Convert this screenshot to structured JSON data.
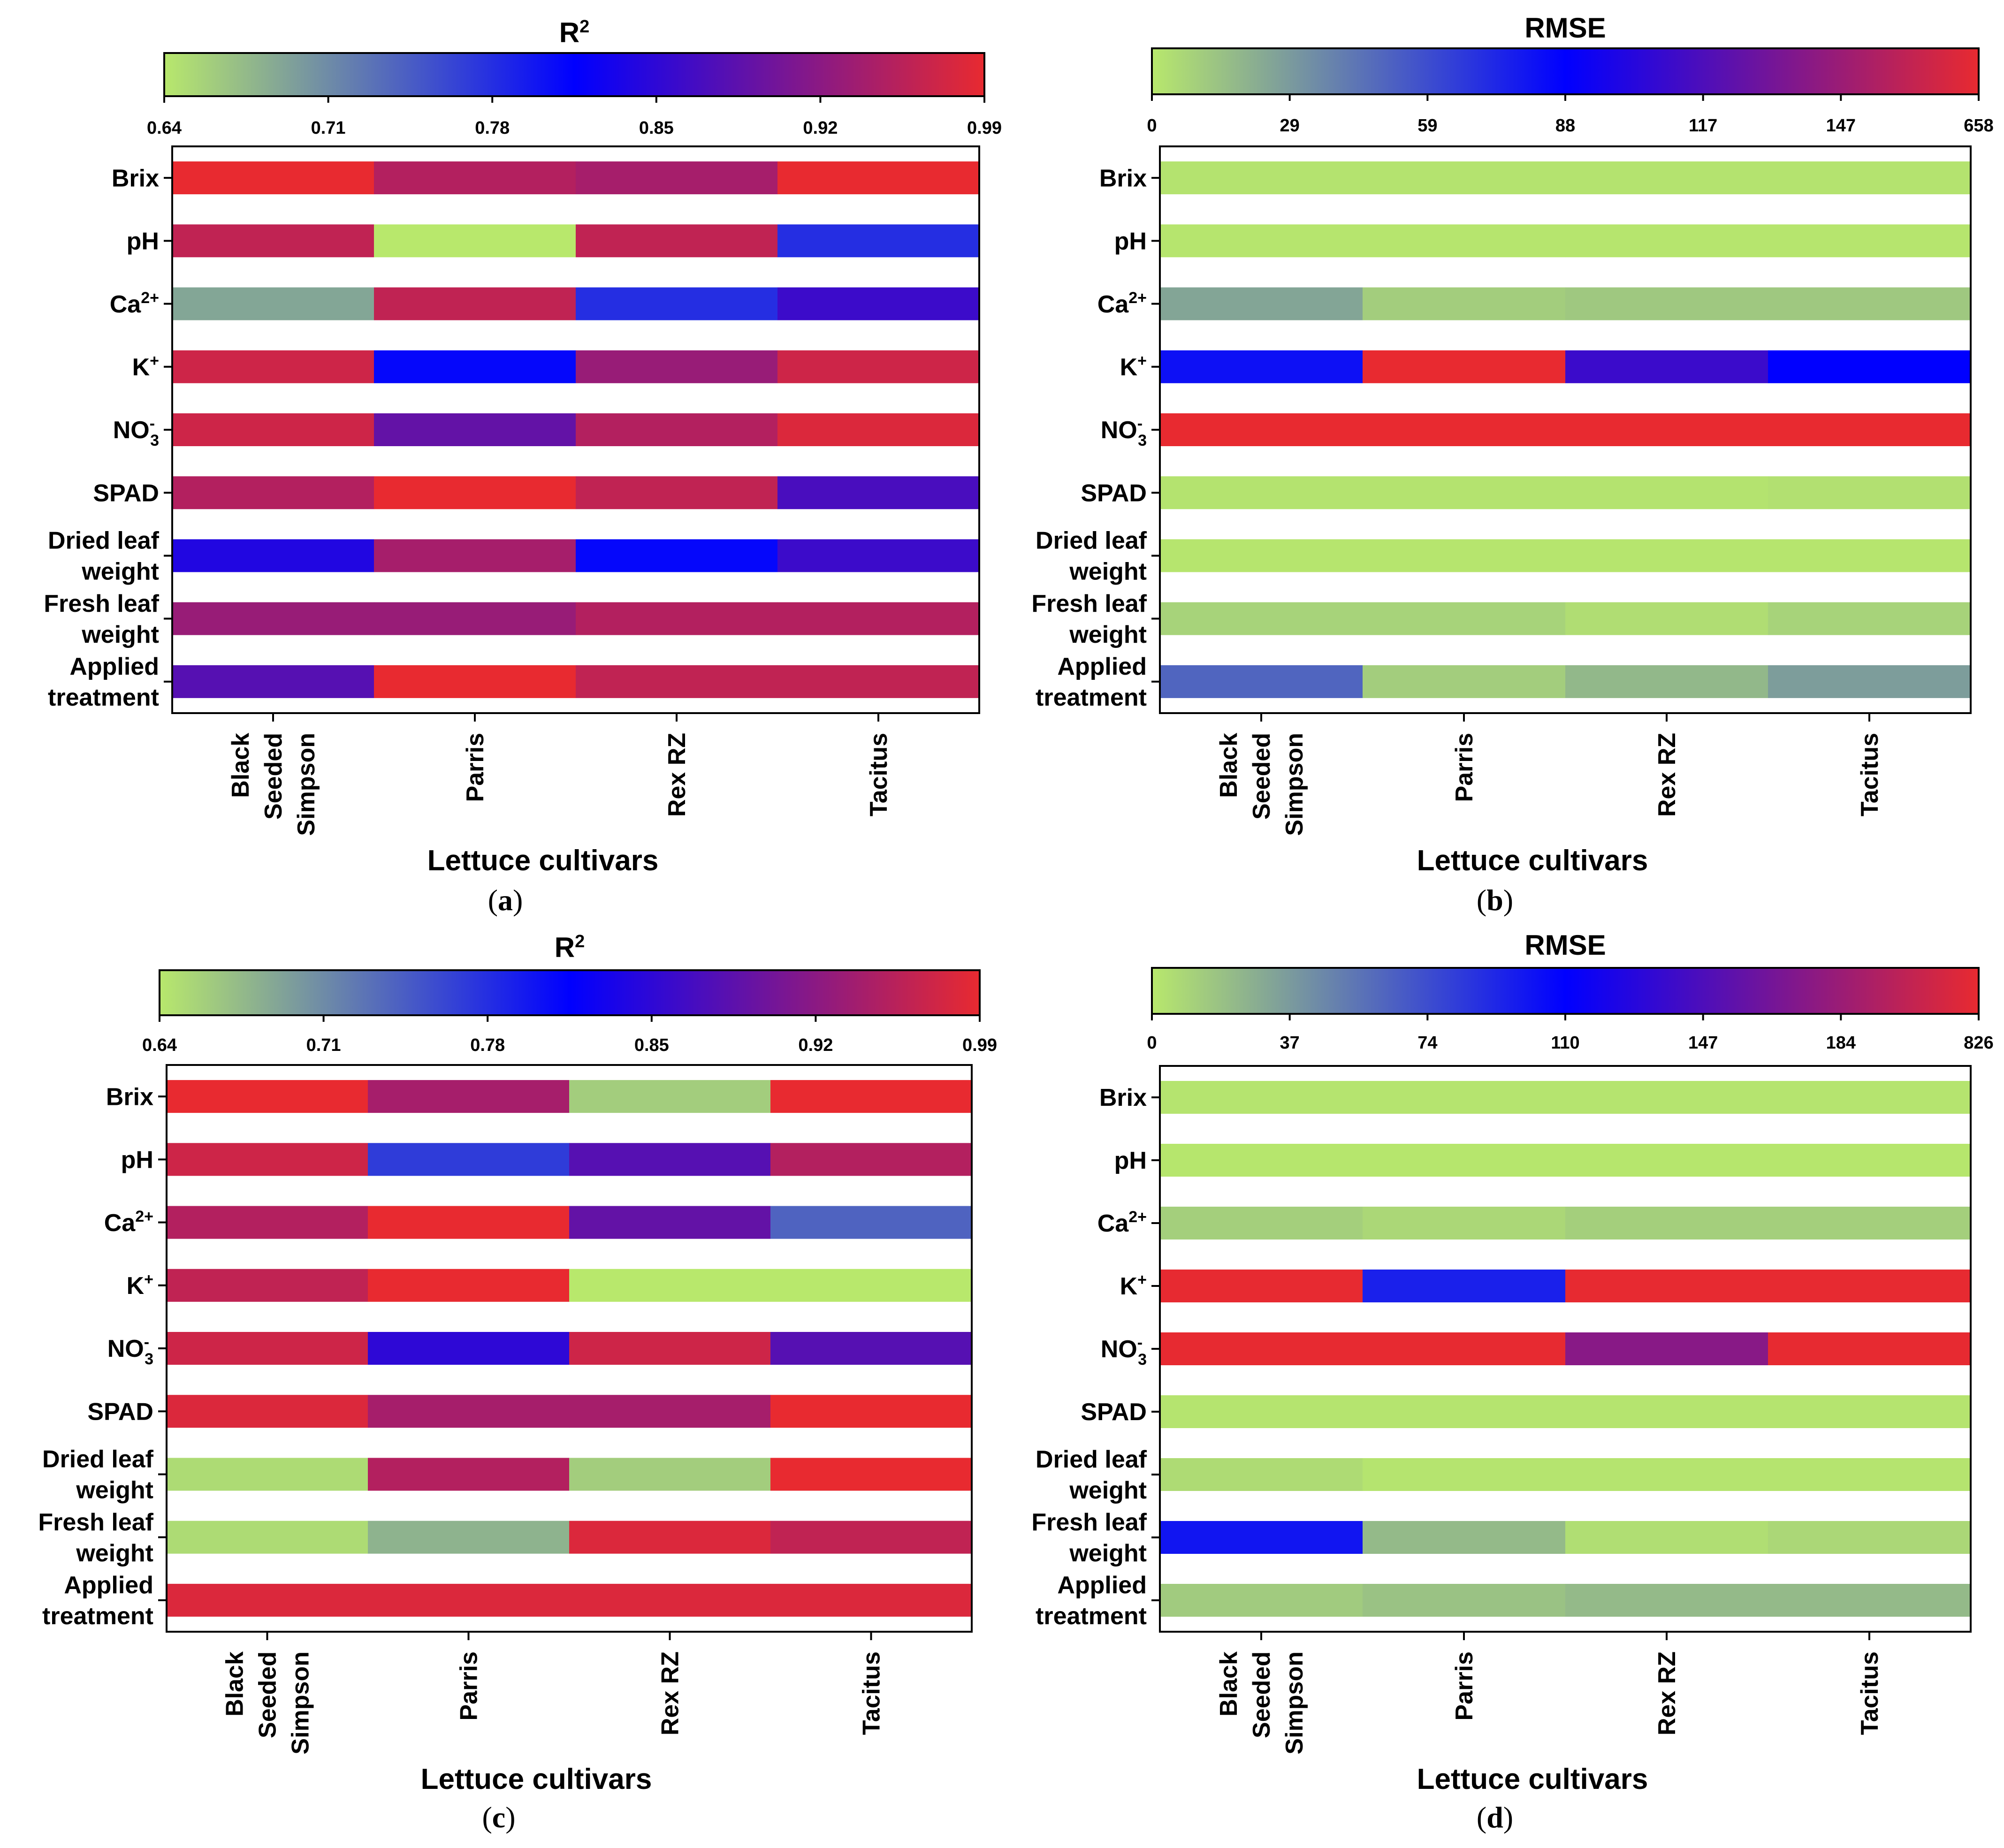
{
  "panels": [
    {
      "title_main": "R",
      "title_sup": "2",
      "caption_pre": "(",
      "caption_letter": "a",
      "caption_post": ")",
      "ticks": [
        "0.64",
        "0.71",
        "0.78",
        "0.85",
        "0.92",
        "0.99"
      ]
    },
    {
      "title_main": "RMSE",
      "title_sup": "",
      "caption_pre": "(",
      "caption_letter": "b",
      "caption_post": ")",
      "ticks": [
        "0",
        "29",
        "59",
        "88",
        "117",
        "147",
        "658"
      ]
    },
    {
      "title_main": "R",
      "title_sup": "2",
      "caption_pre": "(",
      "caption_letter": "c",
      "caption_post": ")",
      "ticks": [
        "0.64",
        "0.71",
        "0.78",
        "0.85",
        "0.92",
        "0.99"
      ]
    },
    {
      "title_main": "RMSE",
      "title_sup": "",
      "caption_pre": "(",
      "caption_letter": "d",
      "caption_post": ")",
      "ticks": [
        "0",
        "37",
        "74",
        "110",
        "147",
        "184",
        "826"
      ]
    }
  ],
  "rows": [
    {
      "lines": [
        {
          "text": "Brix",
          "sup": "",
          "sub": ""
        }
      ]
    },
    {
      "lines": [
        {
          "text": "pH",
          "sup": "",
          "sub": ""
        }
      ]
    },
    {
      "lines": [
        {
          "text": "Ca",
          "sup": "2+",
          "sub": ""
        }
      ]
    },
    {
      "lines": [
        {
          "text": "K",
          "sup": "+",
          "sub": ""
        }
      ]
    },
    {
      "lines": [
        {
          "text": "NO",
          "sup": "-",
          "sub": "3"
        }
      ]
    },
    {
      "lines": [
        {
          "text": "SPAD",
          "sup": "",
          "sub": ""
        }
      ]
    },
    {
      "lines": [
        {
          "text": "Dried leaf",
          "sup": "",
          "sub": ""
        },
        {
          "text": "weight",
          "sup": "",
          "sub": ""
        }
      ]
    },
    {
      "lines": [
        {
          "text": "Fresh leaf",
          "sup": "",
          "sub": ""
        },
        {
          "text": "weight",
          "sup": "",
          "sub": ""
        }
      ]
    },
    {
      "lines": [
        {
          "text": "Applied",
          "sup": "",
          "sub": ""
        },
        {
          "text": "treatment",
          "sup": "",
          "sub": ""
        }
      ]
    }
  ],
  "cultivars": [
    {
      "lines": [
        "Black",
        "Seeded",
        "Simpson"
      ]
    },
    {
      "lines": [
        "Parris"
      ]
    },
    {
      "lines": [
        "Rex RZ"
      ]
    },
    {
      "lines": [
        "Tacitus"
      ]
    }
  ],
  "xlabel": "Lettuce cultivars",
  "chart_data": [
    {
      "type": "heatmap",
      "title": "R2",
      "metric": "R2",
      "colormap_stops": [
        "#b8e86c",
        "#0000ff",
        "#e82a30"
      ],
      "color_range": [
        0.64,
        0.99
      ],
      "row_labels": [
        "Brix",
        "pH",
        "Ca2+",
        "K+",
        "NO3-",
        "SPAD",
        "Dried leaf weight",
        "Fresh leaf weight",
        "Applied treatment"
      ],
      "col_labels": [
        "Black Seeded Simpson",
        "Parris",
        "Rex RZ",
        "Tacitus"
      ],
      "xlabel": "Lettuce cultivars",
      "values": [
        [
          0.99,
          0.95,
          0.94,
          0.99
        ],
        [
          0.96,
          0.64,
          0.96,
          0.78
        ],
        [
          0.69,
          0.96,
          0.78,
          0.86
        ],
        [
          0.97,
          0.81,
          0.93,
          0.97
        ],
        [
          0.97,
          0.89,
          0.95,
          0.98
        ],
        [
          0.95,
          0.99,
          0.96,
          0.87
        ],
        [
          0.84,
          0.94,
          0.81,
          0.86
        ],
        [
          0.93,
          0.93,
          0.95,
          0.95
        ],
        [
          0.88,
          0.99,
          0.96,
          0.96
        ]
      ]
    },
    {
      "type": "heatmap",
      "title": "RMSE",
      "metric": "RMSE",
      "colormap_stops": [
        "#b8e86c",
        "#0000ff",
        "#e82a30"
      ],
      "color_range": [
        0,
        658
      ],
      "row_labels": [
        "Brix",
        "pH",
        "Ca2+",
        "K+",
        "NO3-",
        "SPAD",
        "Dried leaf weight",
        "Fresh leaf weight",
        "Applied treatment"
      ],
      "col_labels": [
        "Black Seeded Simpson",
        "Parris",
        "Rex RZ",
        "Tacitus"
      ],
      "xlabel": "Lettuce cultivars",
      "values": [
        [
          2,
          2,
          2,
          2
        ],
        [
          1,
          1,
          1,
          1
        ],
        [
          25,
          10,
          12,
          12
        ],
        [
          82,
          655,
          110,
          88
        ],
        [
          655,
          655,
          655,
          655
        ],
        [
          2,
          2,
          2,
          3
        ],
        [
          1,
          1,
          1,
          1
        ],
        [
          8,
          8,
          4,
          8
        ],
        [
          50,
          10,
          18,
          28
        ]
      ]
    },
    {
      "type": "heatmap",
      "title": "R2",
      "metric": "R2",
      "colormap_stops": [
        "#b8e86c",
        "#0000ff",
        "#e82a30"
      ],
      "color_range": [
        0.64,
        0.99
      ],
      "row_labels": [
        "Brix",
        "pH",
        "Ca2+",
        "K+",
        "NO3-",
        "SPAD",
        "Dried leaf weight",
        "Fresh leaf weight",
        "Applied treatment"
      ],
      "col_labels": [
        "Black Seeded Simpson",
        "Parris",
        "Rex RZ",
        "Tacitus"
      ],
      "xlabel": "Lettuce cultivars",
      "values": [
        [
          0.99,
          0.94,
          0.66,
          0.99
        ],
        [
          0.97,
          0.77,
          0.88,
          0.95
        ],
        [
          0.95,
          0.99,
          0.89,
          0.74
        ],
        [
          0.96,
          0.99,
          0.64,
          0.64
        ],
        [
          0.97,
          0.85,
          0.97,
          0.88
        ],
        [
          0.98,
          0.94,
          0.94,
          0.99
        ],
        [
          0.65,
          0.95,
          0.66,
          0.99
        ],
        [
          0.65,
          0.68,
          0.98,
          0.96
        ],
        [
          0.98,
          0.98,
          0.98,
          0.98
        ]
      ]
    },
    {
      "type": "heatmap",
      "title": "RMSE",
      "metric": "RMSE",
      "colormap_stops": [
        "#b8e86c",
        "#0000ff",
        "#e82a30"
      ],
      "color_range": [
        0,
        826
      ],
      "row_labels": [
        "Brix",
        "pH",
        "Ca2+",
        "K+",
        "NO3-",
        "SPAD",
        "Dried leaf weight",
        "Fresh leaf weight",
        "Applied treatment"
      ],
      "col_labels": [
        "Black Seeded Simpson",
        "Parris",
        "Rex RZ",
        "Tacitus"
      ],
      "xlabel": "Lettuce cultivars",
      "values": [
        [
          2,
          2,
          2,
          2
        ],
        [
          1,
          1,
          1,
          1
        ],
        [
          12,
          8,
          12,
          12
        ],
        [
          820,
          95,
          820,
          820
        ],
        [
          820,
          820,
          175,
          820
        ],
        [
          2,
          2,
          2,
          2
        ],
        [
          6,
          2,
          2,
          2
        ],
        [
          100,
          22,
          5,
          8
        ],
        [
          14,
          18,
          22,
          22
        ]
      ]
    }
  ]
}
